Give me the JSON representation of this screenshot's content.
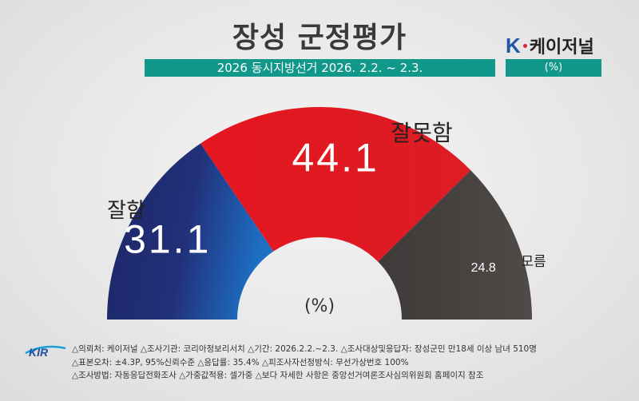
{
  "header": {
    "title": "장성 군정평가",
    "subtitle": "2026 동시지방선거 2026. 2.2. ~ 2.3.",
    "brand_k": "K",
    "brand_name": "케이저널",
    "unit": "(%)"
  },
  "chart_data": {
    "type": "pie",
    "subtype": "semicircle-donut",
    "unit": "(%)",
    "categories": [
      "잘함",
      "잘못함",
      "모름"
    ],
    "values": [
      31.1,
      44.1,
      24.8
    ],
    "colors": [
      "#1f2b6b",
      "#e01a22",
      "#4a4543"
    ],
    "value_labels": [
      "31.1",
      "44.1",
      "24.8"
    ]
  },
  "footer": {
    "logo_text": "KIR",
    "line1": "△의뢰처: 케이저널   △조사기관: 코리아정보리서치   △기간: 2026.2.2.~2.3.   △조사대상및응답자: 장성군민 만18세 이상 남녀 510명",
    "line2": "△표본오차: ±4.3P, 95%신뢰수준   △응답률: 35.4%   △피조사자선정방식: 무선가상번호 100%",
    "line3": "△조사방법: 자동응답전화조사   △가중값적용: 셀가중   △보다 자세한 사항은 중앙선거여론조사심의위원회 홈페이지 참조"
  }
}
